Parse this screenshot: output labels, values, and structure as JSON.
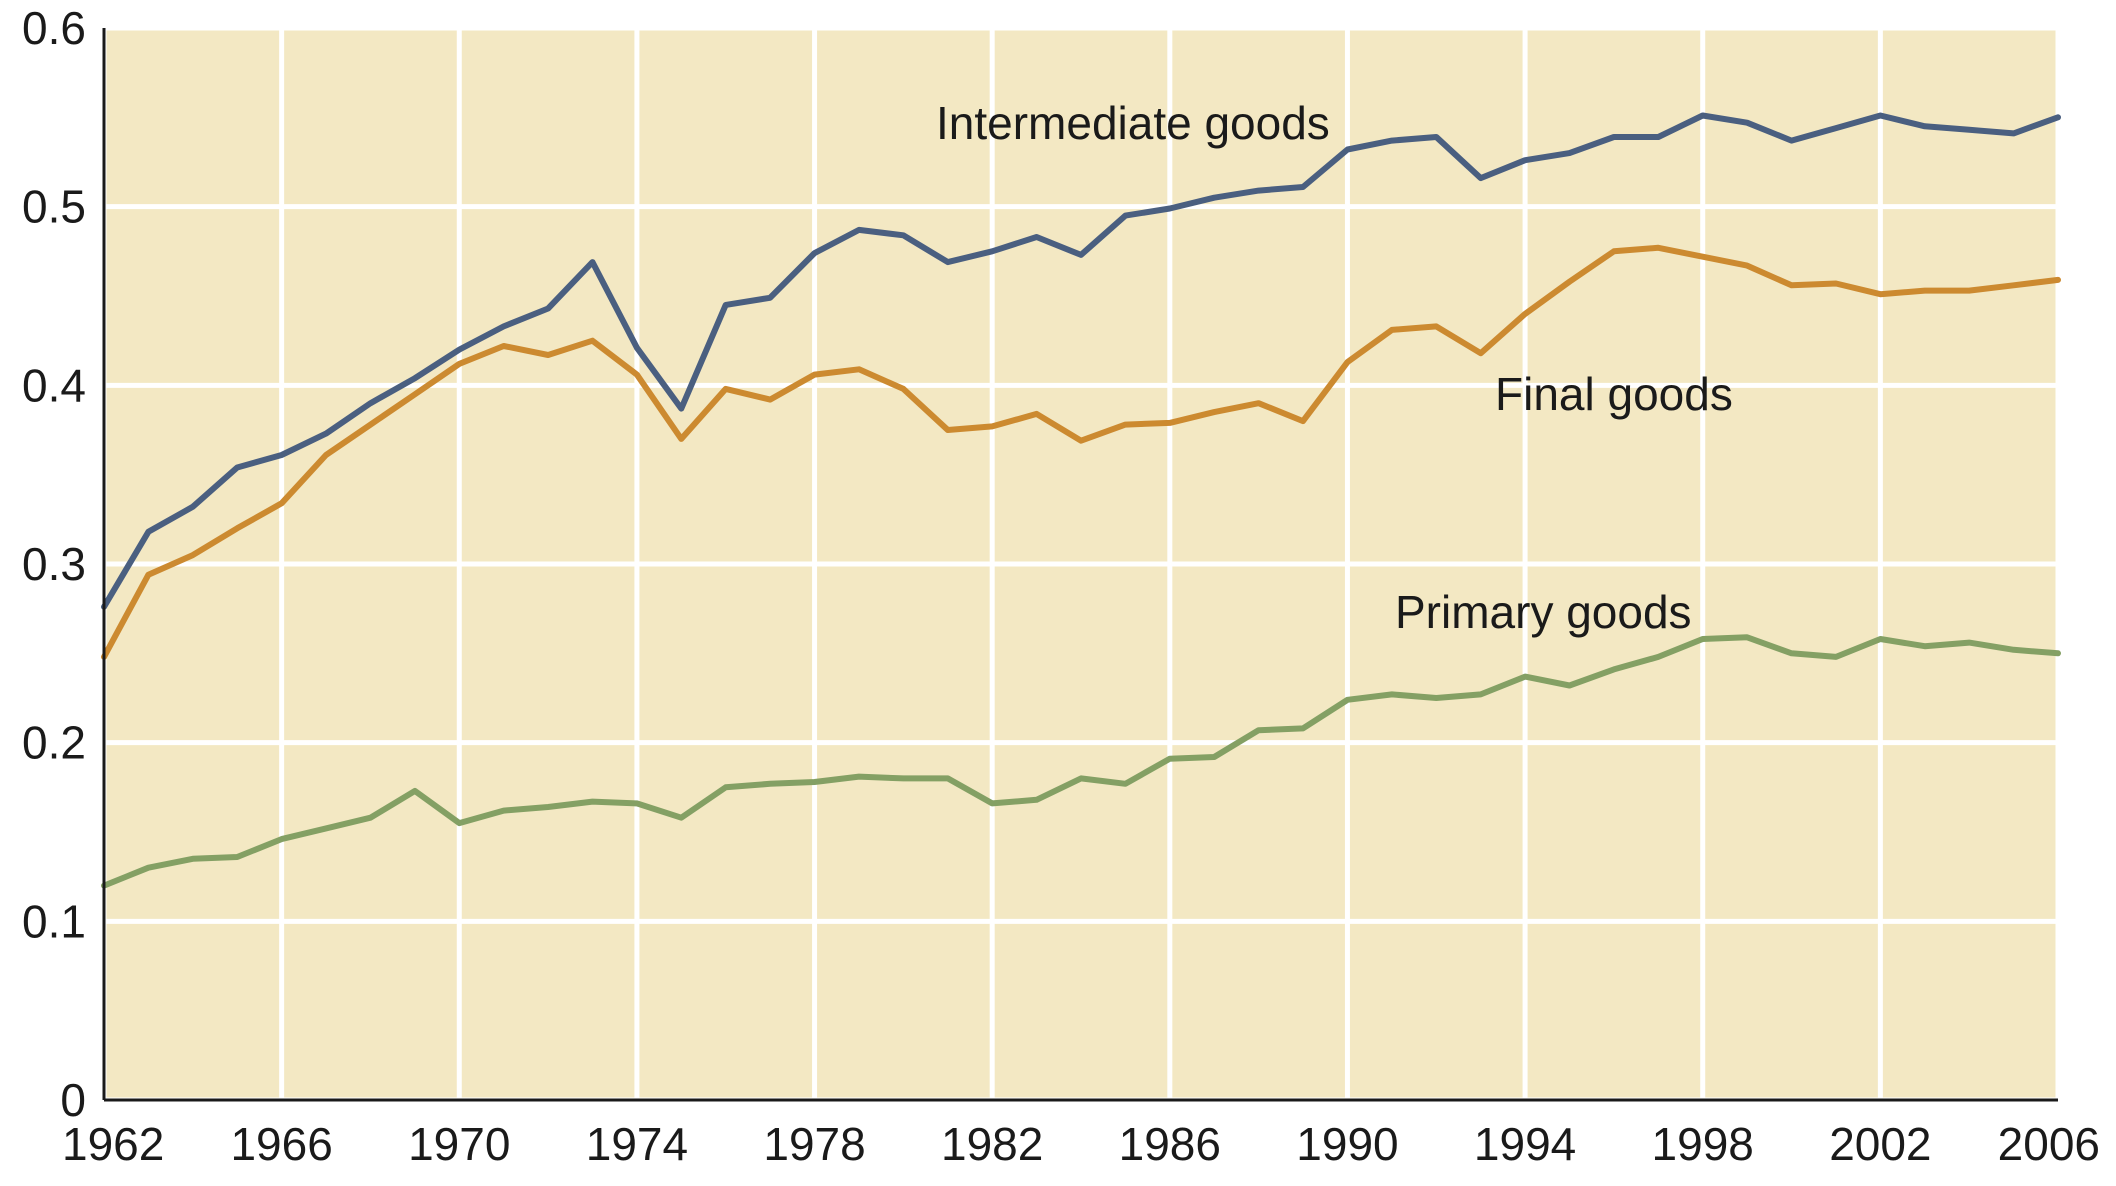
{
  "chart_data": {
    "type": "line",
    "title": "",
    "xlabel": "",
    "ylabel": "",
    "xlim": [
      1962,
      2006
    ],
    "ylim": [
      0,
      0.6
    ],
    "grid": true,
    "x_ticks": [
      "1962",
      "1966",
      "1970",
      "1974",
      "1978",
      "1982",
      "1986",
      "1990",
      "1994",
      "1998",
      "2002",
      "2006"
    ],
    "y_ticks": [
      "0",
      "0.1",
      "0.2",
      "0.3",
      "0.4",
      "0.5",
      "0.6"
    ],
    "x": [
      1962,
      1963,
      1964,
      1965,
      1966,
      1967,
      1968,
      1969,
      1970,
      1971,
      1972,
      1973,
      1974,
      1975,
      1976,
      1977,
      1978,
      1979,
      1980,
      1981,
      1982,
      1983,
      1984,
      1985,
      1986,
      1987,
      1988,
      1989,
      1990,
      1991,
      1992,
      1993,
      1994,
      1995,
      1996,
      1997,
      1998,
      1999,
      2000,
      2001,
      2002,
      2003,
      2004,
      2005,
      2006
    ],
    "series": [
      {
        "name": "Intermediate goods",
        "color": "#4a5f80",
        "values": [
          0.276,
          0.318,
          0.332,
          0.354,
          0.361,
          0.373,
          0.39,
          0.404,
          0.42,
          0.433,
          0.443,
          0.469,
          0.421,
          0.387,
          0.445,
          0.449,
          0.474,
          0.487,
          0.484,
          0.469,
          0.475,
          0.483,
          0.473,
          0.495,
          0.499,
          0.505,
          0.509,
          0.511,
          0.532,
          0.537,
          0.539,
          0.516,
          0.526,
          0.53,
          0.539,
          0.539,
          0.551,
          0.547,
          0.537,
          0.544,
          0.551,
          0.545,
          0.543,
          0.541,
          0.55
        ]
      },
      {
        "name": "Final goods",
        "color": "#cc8a30",
        "values": [
          0.248,
          0.294,
          0.305,
          0.32,
          0.334,
          0.361,
          0.378,
          0.395,
          0.412,
          0.422,
          0.417,
          0.425,
          0.406,
          0.37,
          0.398,
          0.392,
          0.406,
          0.409,
          0.398,
          0.375,
          0.377,
          0.384,
          0.369,
          0.378,
          0.379,
          0.385,
          0.39,
          0.38,
          0.413,
          0.431,
          0.433,
          0.418,
          0.44,
          0.458,
          0.475,
          0.477,
          0.472,
          0.467,
          0.456,
          0.457,
          0.451,
          0.453,
          0.453,
          0.456,
          0.459
        ]
      },
      {
        "name": "Primary goods",
        "color": "#84a064",
        "values": [
          0.12,
          0.13,
          0.135,
          0.136,
          0.146,
          0.152,
          0.158,
          0.173,
          0.155,
          0.162,
          0.164,
          0.167,
          0.166,
          0.158,
          0.175,
          0.177,
          0.178,
          0.181,
          0.18,
          0.18,
          0.166,
          0.168,
          0.18,
          0.177,
          0.191,
          0.192,
          0.207,
          0.208,
          0.224,
          0.227,
          0.225,
          0.227,
          0.237,
          0.232,
          0.241,
          0.248,
          0.258,
          0.259,
          0.25,
          0.248,
          0.258,
          0.254,
          0.256,
          0.252,
          0.25
        ]
      }
    ],
    "colors": {
      "plot_background": "#f3e8c3",
      "grid": "#ffffff",
      "axis": "#1a1a1a"
    }
  }
}
